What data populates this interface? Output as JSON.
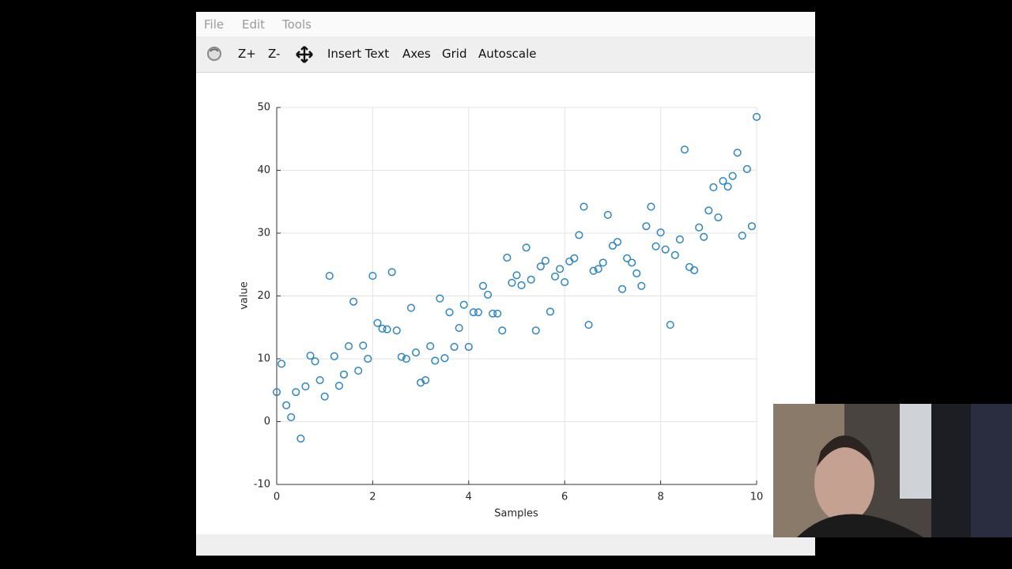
{
  "menu": [
    "File",
    "Edit",
    "Tools"
  ],
  "toolbar": [
    "Z+",
    "Z-",
    "Insert Text",
    "Axes",
    "Grid",
    "Autoscale"
  ],
  "chart_data": {
    "type": "scatter",
    "xlabel": "Samples",
    "ylabel": "value",
    "color": "#2e86c1",
    "marker": "open-circle",
    "grid": true,
    "xlim": [
      0,
      10
    ],
    "ylim": [
      -10,
      50
    ],
    "xticks": [
      0,
      2,
      4,
      6,
      8,
      10
    ],
    "yticks": [
      -10,
      0,
      10,
      20,
      30,
      40,
      50
    ],
    "x": [
      0,
      0.1,
      0.2,
      0.3,
      0.4,
      0.5,
      0.6,
      0.7,
      0.8,
      0.9,
      1.0,
      1.1,
      1.2,
      1.3,
      1.4,
      1.5,
      1.6,
      1.7,
      1.8,
      1.9,
      2.0,
      2.1,
      2.2,
      2.3,
      2.4,
      2.5,
      2.6,
      2.7,
      2.8,
      2.9,
      3.0,
      3.1,
      3.2,
      3.3,
      3.4,
      3.5,
      3.6,
      3.7,
      3.8,
      3.9,
      4.0,
      4.1,
      4.2,
      4.3,
      4.4,
      4.5,
      4.6,
      4.7,
      4.8,
      4.9,
      5.0,
      5.1,
      5.2,
      5.3,
      5.4,
      5.5,
      5.6,
      5.7,
      5.8,
      5.9,
      6.0,
      6.1,
      6.2,
      6.3,
      6.4,
      6.5,
      6.6,
      6.7,
      6.8,
      6.9,
      7.0,
      7.1,
      7.2,
      7.3,
      7.4,
      7.5,
      7.6,
      7.7,
      7.8,
      7.9,
      8.0,
      8.1,
      8.2,
      8.3,
      8.4,
      8.5,
      8.6,
      8.7,
      8.8,
      8.9,
      9.0,
      9.1,
      9.2,
      9.3,
      9.4,
      9.5,
      9.6,
      9.7,
      9.8,
      9.9,
      10.0
    ],
    "values": [
      4.7,
      9.2,
      2.6,
      0.7,
      4.7,
      -2.7,
      5.6,
      10.5,
      9.6,
      6.6,
      4.0,
      23.2,
      10.4,
      5.7,
      7.5,
      12.0,
      19.1,
      8.1,
      12.1,
      10.0,
      23.2,
      15.7,
      14.8,
      14.7,
      23.8,
      14.5,
      10.3,
      10.0,
      18.1,
      11.0,
      6.2,
      6.6,
      12.0,
      9.7,
      19.6,
      10.1,
      17.4,
      11.9,
      14.9,
      18.6,
      11.9,
      17.4,
      17.4,
      21.6,
      20.2,
      17.2,
      17.2,
      14.5,
      26.1,
      22.1,
      23.3,
      21.7,
      27.7,
      22.6,
      14.5,
      24.7,
      25.6,
      17.5,
      23.1,
      24.3,
      22.2,
      25.5,
      26.0,
      29.7,
      34.2,
      15.4,
      24.0,
      24.3,
      25.3,
      32.9,
      28.0,
      28.6,
      21.1,
      26.0,
      25.3,
      23.6,
      21.6,
      31.1,
      34.2,
      27.9,
      30.1,
      27.4,
      15.4,
      26.5,
      29.0,
      43.3,
      24.6,
      24.1,
      30.9,
      29.4,
      33.6,
      37.3,
      32.5,
      38.3,
      37.4,
      39.1,
      42.8,
      29.6,
      40.2,
      31.1,
      48.5
    ]
  }
}
